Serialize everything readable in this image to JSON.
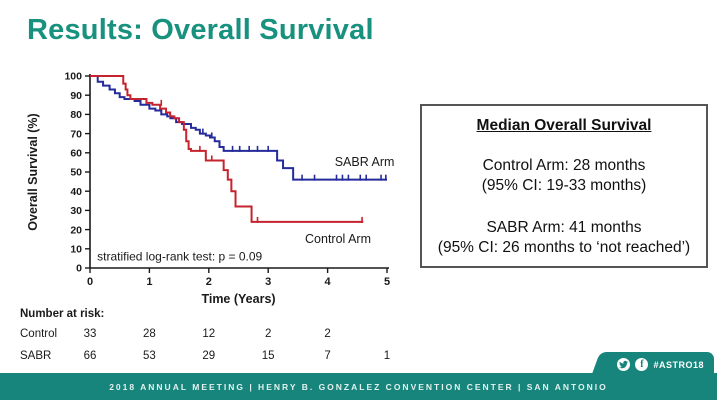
{
  "slide": {
    "title": "Results: Overall Survival",
    "accent_color": "#18917f"
  },
  "chart_data": {
    "type": "line",
    "subtype": "kaplan-meier",
    "title": "",
    "xlabel": "Time (Years)",
    "ylabel": "Overall Survival (%)",
    "xlim": [
      0,
      5
    ],
    "ylim": [
      0,
      100
    ],
    "xticks": [
      0,
      1,
      2,
      3,
      4,
      5
    ],
    "yticks": [
      0,
      10,
      20,
      30,
      40,
      50,
      60,
      70,
      80,
      90,
      100
    ],
    "grid": false,
    "annotation": "stratified log-rank test: p = 0.09",
    "annotation_pos": {
      "x": 0.12,
      "y": 4
    },
    "series": [
      {
        "name": "SABR Arm",
        "color": "#262b9b",
        "label_pos": {
          "x": 4.12,
          "y": 53
        },
        "points": [
          [
            0,
            100
          ],
          [
            0.13,
            97
          ],
          [
            0.22,
            95
          ],
          [
            0.33,
            93
          ],
          [
            0.42,
            91
          ],
          [
            0.5,
            89
          ],
          [
            0.58,
            88
          ],
          [
            0.75,
            87
          ],
          [
            0.85,
            85
          ],
          [
            1.0,
            83
          ],
          [
            1.1,
            82
          ],
          [
            1.2,
            80
          ],
          [
            1.3,
            79
          ],
          [
            1.38,
            78
          ],
          [
            1.45,
            76
          ],
          [
            1.55,
            75
          ],
          [
            1.7,
            73
          ],
          [
            1.78,
            72
          ],
          [
            1.85,
            70
          ],
          [
            1.95,
            69
          ],
          [
            2.02,
            68
          ],
          [
            2.1,
            66
          ],
          [
            2.18,
            63
          ],
          [
            2.25,
            61
          ],
          [
            3.15,
            56
          ],
          [
            3.25,
            52
          ],
          [
            3.42,
            46
          ],
          [
            5.0,
            46
          ]
        ],
        "censors": [
          [
            1.35,
            78
          ],
          [
            1.9,
            70
          ],
          [
            2.05,
            68
          ],
          [
            2.4,
            61
          ],
          [
            2.52,
            61
          ],
          [
            2.68,
            61
          ],
          [
            2.82,
            61
          ],
          [
            3.0,
            61
          ],
          [
            3.57,
            46
          ],
          [
            3.78,
            46
          ],
          [
            4.15,
            46
          ],
          [
            4.25,
            46
          ],
          [
            4.35,
            46
          ],
          [
            4.55,
            46
          ],
          [
            4.65,
            46
          ],
          [
            4.9,
            46
          ],
          [
            4.98,
            46
          ]
        ]
      },
      {
        "name": "Control Arm",
        "color": "#c5242e",
        "label_pos": {
          "x": 3.62,
          "y": 13
        },
        "points": [
          [
            0,
            100
          ],
          [
            0.56,
            96
          ],
          [
            0.6,
            93
          ],
          [
            0.63,
            90
          ],
          [
            0.68,
            88
          ],
          [
            0.95,
            86
          ],
          [
            1.05,
            85
          ],
          [
            1.18,
            83
          ],
          [
            1.28,
            81
          ],
          [
            1.35,
            79
          ],
          [
            1.42,
            78
          ],
          [
            1.5,
            76
          ],
          [
            1.58,
            72
          ],
          [
            1.62,
            66
          ],
          [
            1.66,
            62
          ],
          [
            1.7,
            61
          ],
          [
            1.95,
            56
          ],
          [
            2.25,
            51
          ],
          [
            2.32,
            46
          ],
          [
            2.38,
            40
          ],
          [
            2.45,
            32
          ],
          [
            2.72,
            24
          ],
          [
            4.6,
            24
          ]
        ],
        "censors": [
          [
            1.2,
            85
          ],
          [
            1.85,
            61
          ],
          [
            2.05,
            56
          ],
          [
            2.82,
            24
          ],
          [
            4.58,
            24
          ]
        ]
      }
    ],
    "number_at_risk": {
      "label": "Number at risk:",
      "rows": [
        {
          "name": "Control",
          "counts": [
            "33",
            "28",
            "12",
            "2",
            "2",
            ""
          ]
        },
        {
          "name": "SABR",
          "counts": [
            "66",
            "53",
            "29",
            "15",
            "7",
            "1"
          ]
        }
      ]
    }
  },
  "info_box": {
    "title": "Median Overall Survival",
    "control_line1": "Control Arm: 28 months",
    "control_line2": "(95% CI: 19-33 months)",
    "sabr_line1": "SABR Arm: 41 months",
    "sabr_line2": "(95% CI: 26 months to ‘not reached’)"
  },
  "footer": {
    "band_color": "#17857c",
    "text": "2018 ANNUAL MEETING   |   HENRY B. GONZALEZ CONVENTION CENTER   |   SAN ANTONIO",
    "badge": {
      "hashtag": "#ASTRO18",
      "icons": [
        "twitter-icon",
        "facebook-icon"
      ]
    }
  }
}
